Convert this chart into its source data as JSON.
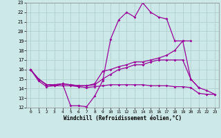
{
  "xlabel": "Windchill (Refroidissement éolien,°C)",
  "line_color": "#990099",
  "bg_color": "#cce8e8",
  "grid_color": "#aacccc",
  "ylim": [
    12,
    23
  ],
  "xlim": [
    -0.5,
    23.5
  ],
  "yticks": [
    12,
    13,
    14,
    15,
    16,
    17,
    18,
    19,
    20,
    21,
    22,
    23
  ],
  "xticks": [
    0,
    1,
    2,
    3,
    4,
    5,
    6,
    7,
    8,
    9,
    10,
    11,
    12,
    13,
    14,
    15,
    16,
    17,
    18,
    19,
    20,
    21,
    22,
    23
  ],
  "line1_x": [
    0,
    1,
    2,
    3,
    4,
    5,
    6,
    7,
    8,
    9,
    10,
    11,
    12,
    13,
    14,
    15,
    16,
    17,
    18,
    19,
    20,
    21
  ],
  "line1_y": [
    16,
    14.8,
    14.2,
    14.3,
    14.5,
    12.2,
    12.2,
    12.1,
    13.2,
    14.8,
    19.2,
    21.2,
    22.0,
    21.5,
    23.0,
    22.0,
    21.5,
    21.3,
    19.0,
    19.0,
    15.0,
    14.1
  ],
  "line2_x": [
    0,
    1,
    2,
    3,
    4,
    5,
    6,
    7,
    8,
    9,
    10,
    11,
    12,
    13,
    14,
    15,
    16,
    17,
    18,
    19,
    20
  ],
  "line2_y": [
    16,
    15.0,
    14.4,
    14.4,
    14.5,
    14.4,
    14.3,
    14.3,
    14.5,
    15.8,
    16.0,
    16.3,
    16.5,
    16.8,
    16.8,
    17.0,
    17.2,
    17.5,
    18.0,
    19.0,
    19.0
  ],
  "line3_x": [
    0,
    1,
    2,
    3,
    4,
    5,
    6,
    7,
    8,
    9,
    10,
    11,
    12,
    13,
    14,
    15,
    16,
    17,
    18,
    19,
    20,
    21,
    22,
    23
  ],
  "line3_y": [
    16,
    15.0,
    14.4,
    14.4,
    14.5,
    14.4,
    14.3,
    14.3,
    14.4,
    15.0,
    15.5,
    16.0,
    16.2,
    16.5,
    16.5,
    16.8,
    17.0,
    17.0,
    17.0,
    17.0,
    15.0,
    14.1,
    13.8,
    13.4
  ],
  "line4_x": [
    0,
    1,
    2,
    3,
    4,
    5,
    6,
    7,
    8,
    9,
    10,
    11,
    12,
    13,
    14,
    15,
    16,
    17,
    18,
    19,
    20,
    21,
    22,
    23
  ],
  "line4_y": [
    16,
    15.0,
    14.4,
    14.3,
    14.3,
    14.3,
    14.2,
    14.1,
    14.2,
    14.3,
    14.4,
    14.4,
    14.4,
    14.4,
    14.4,
    14.3,
    14.3,
    14.3,
    14.2,
    14.2,
    14.1,
    13.5,
    13.4,
    13.4
  ]
}
